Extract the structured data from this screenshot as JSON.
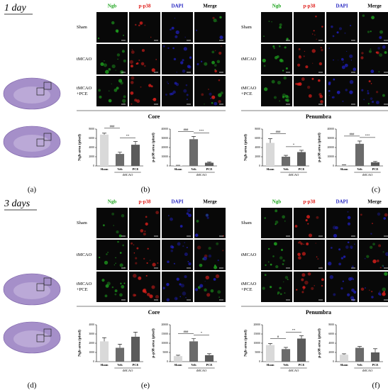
{
  "sections": [
    {
      "day": "1 day",
      "brain_label": "(a)",
      "groups": [
        {
          "region": "Core",
          "label": "(b)",
          "columns": [
            "Ngb",
            "p-p38",
            "DAPI",
            "Merge"
          ],
          "column_colors": [
            "#1fa51f",
            "#e0201c",
            "#2020c0",
            "#000000"
          ],
          "rows": [
            [
              "Sham"
            ],
            [
              "tMCAO"
            ],
            [
              "tMCAO",
              "+PCE"
            ]
          ],
          "charts": [
            {
              "type": "bar",
              "ylabel": "Ngb area (pixel)",
              "categories": [
                "Sham",
                "Veh",
                "PCE"
              ],
              "group_label": "tMCAO",
              "values": [
                6800,
                2600,
                4600
              ],
              "errors": [
                300,
                400,
                700
              ],
              "colors": [
                "#d9d9d9",
                "#6b6b6b",
                "#5a5a5a"
              ],
              "ylim": [
                0,
                8000
              ],
              "yticks": [
                0,
                2000,
                4000,
                6000,
                8000
              ],
              "annotations": [
                "###",
                "**"
              ]
            },
            {
              "type": "bar",
              "ylabel": "p-p38 area (pixel)",
              "categories": [
                "Sham",
                "Veh",
                "PCE"
              ],
              "group_label": "tMCAO",
              "values": [
                500,
                29000,
                3500
              ],
              "errors": [
                200,
                3000,
                800
              ],
              "colors": [
                "#d9d9d9",
                "#6b6b6b",
                "#5a5a5a"
              ],
              "ylim": [
                0,
                40000
              ],
              "yticks": [
                0,
                10000,
                20000,
                30000,
                40000
              ],
              "annotations": [
                "###",
                "***"
              ]
            }
          ]
        },
        {
          "region": "Penumbra",
          "label": "(c)",
          "columns": [
            "Ngb",
            "p-p38",
            "DAPI",
            "Merge"
          ],
          "column_colors": [
            "#1fa51f",
            "#e0201c",
            "#2020c0",
            "#000000"
          ],
          "rows": [
            [
              "Sham"
            ],
            [
              "tMCAO"
            ],
            [
              "tMCAO",
              "+PCE"
            ]
          ],
          "charts": [
            {
              "type": "bar",
              "ylabel": "Ngb area (pixel)",
              "categories": [
                "Sham",
                "Veh",
                "PCE"
              ],
              "group_label": "tMCAO",
              "values": [
                5000,
                2000,
                3000
              ],
              "errors": [
                900,
                300,
                400
              ],
              "colors": [
                "#d9d9d9",
                "#6b6b6b",
                "#5a5a5a"
              ],
              "ylim": [
                0,
                8000
              ],
              "yticks": [
                0,
                2000,
                4000,
                6000,
                8000
              ],
              "annotations": [
                "###",
                "*"
              ]
            },
            {
              "type": "bar",
              "ylabel": "p-p38 area (pixel)",
              "categories": [
                "Sham",
                "Veh",
                "PCE"
              ],
              "group_label": "tMCAO",
              "values": [
                1000,
                24000,
                4000
              ],
              "errors": [
                300,
                3000,
                1000
              ],
              "colors": [
                "#d9d9d9",
                "#6b6b6b",
                "#5a5a5a"
              ],
              "ylim": [
                0,
                40000
              ],
              "yticks": [
                0,
                10000,
                20000,
                30000,
                40000
              ],
              "annotations": [
                "###",
                "***"
              ]
            }
          ]
        }
      ]
    },
    {
      "day": "3 days",
      "brain_label": "(d)",
      "groups": [
        {
          "region": "Core",
          "label": "(e)",
          "columns": [
            "Ngb",
            "p-p38",
            "DAPI",
            "Merge"
          ],
          "column_colors": [
            "#1fa51f",
            "#e0201c",
            "#2020c0",
            "#000000"
          ],
          "rows": [
            [
              "Sham"
            ],
            [
              "tMCAO"
            ],
            [
              "tMCAO",
              "+PCE"
            ]
          ],
          "charts": [
            {
              "type": "bar",
              "ylabel": "Ngb area (pixel)",
              "categories": [
                "Sham",
                "Veh",
                "PCE"
              ],
              "group_label": "tMCAO",
              "values": [
                2200,
                1500,
                2700
              ],
              "errors": [
                400,
                400,
                500
              ],
              "colors": [
                "#d9d9d9",
                "#6b6b6b",
                "#5a5a5a"
              ],
              "ylim": [
                0,
                4000
              ],
              "yticks": [
                0,
                1000,
                2000,
                3000,
                4000
              ],
              "annotations": []
            },
            {
              "type": "bar",
              "ylabel": "p-p38 area (pixel)",
              "categories": [
                "Sham",
                "Veh",
                "PCE"
              ],
              "group_label": "tMCAO",
              "values": [
                3000,
                11000,
                3500
              ],
              "errors": [
                500,
                1500,
                800
              ],
              "colors": [
                "#d9d9d9",
                "#6b6b6b",
                "#5a5a5a"
              ],
              "ylim": [
                0,
                20000
              ],
              "yticks": [
                0,
                5000,
                10000,
                15000,
                20000
              ],
              "annotations": [
                "###",
                "*"
              ]
            }
          ]
        },
        {
          "region": "Penumbra",
          "label": "(f)",
          "columns": [
            "Ngb",
            "p-p38",
            "DAPI",
            "Merge"
          ],
          "column_colors": [
            "#1fa51f",
            "#e0201c",
            "#2020c0",
            "#000000"
          ],
          "rows": [
            [
              "Sham"
            ],
            [
              "tMCAO"
            ],
            [
              "tMCAO",
              "+PCE"
            ]
          ],
          "charts": [
            {
              "type": "bar",
              "ylabel": "Ngb area (pixel)",
              "categories": [
                "Sham",
                "Veh",
                "PCE"
              ],
              "group_label": "tMCAO",
              "values": [
                9000,
                6800,
                12500
              ],
              "errors": [
                800,
                900,
                1500
              ],
              "colors": [
                "#d9d9d9",
                "#6b6b6b",
                "#5a5a5a"
              ],
              "ylim": [
                0,
                20000
              ],
              "yticks": [
                0,
                5000,
                10000,
                15000,
                20000
              ],
              "annotations": [
                "#",
                "**"
              ]
            },
            {
              "type": "bar",
              "ylabel": "p-p38 area (pixel)",
              "categories": [
                "Sham",
                "Veh",
                "PCE"
              ],
              "group_label": "tMCAO",
              "values": [
                1500,
                3000,
                2000
              ],
              "errors": [
                200,
                300,
                800
              ],
              "colors": [
                "#d9d9d9",
                "#6b6b6b",
                "#5a5a5a"
              ],
              "ylim": [
                0,
                8000
              ],
              "yticks": [
                0,
                2000,
                4000,
                6000,
                8000
              ],
              "annotations": []
            }
          ]
        }
      ]
    }
  ]
}
